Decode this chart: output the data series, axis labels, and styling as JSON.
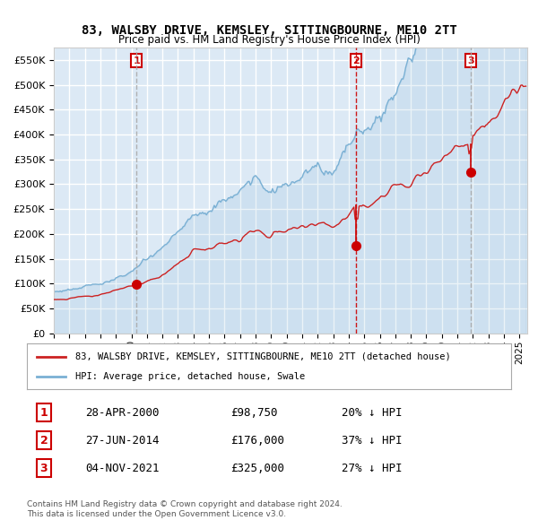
{
  "title": "83, WALSBY DRIVE, KEMSLEY, SITTINGBOURNE, ME10 2TT",
  "subtitle": "Price paid vs. HM Land Registry's House Price Index (HPI)",
  "legend_red": "83, WALSBY DRIVE, KEMSLEY, SITTINGBOURNE, ME10 2TT (detached house)",
  "legend_blue": "HPI: Average price, detached house, Swale",
  "footer1": "Contains HM Land Registry data © Crown copyright and database right 2024.",
  "footer2": "This data is licensed under the Open Government Licence v3.0.",
  "transactions": [
    {
      "num": 1,
      "date": "28-APR-2000",
      "price": 98750,
      "pct": "20% ↓ HPI",
      "year": 2000.32,
      "vline_style": "dashed",
      "vline_color": "#aaaaaa"
    },
    {
      "num": 2,
      "date": "27-JUN-2014",
      "price": 176000,
      "pct": "37% ↓ HPI",
      "year": 2014.49,
      "vline_style": "dashed",
      "vline_color": "#cc0000"
    },
    {
      "num": 3,
      "date": "04-NOV-2021",
      "price": 325000,
      "pct": "27% ↓ HPI",
      "year": 2021.84,
      "vline_style": "dashed",
      "vline_color": "#aaaaaa"
    }
  ],
  "ylim": [
    0,
    575000
  ],
  "xlim_start": 1995.0,
  "xlim_end": 2025.5,
  "background_color": "#dce9f5",
  "plot_bg": "#dce9f5",
  "grid_color": "#ffffff",
  "red_color": "#cc2222",
  "blue_color": "#7ab0d4"
}
